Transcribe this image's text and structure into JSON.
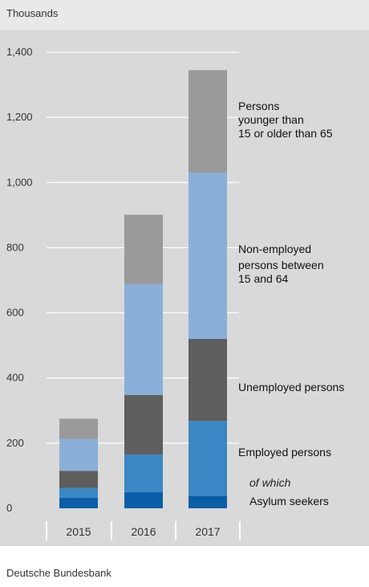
{
  "header": {
    "unit_label": "Thousands"
  },
  "footer": {
    "source": "Deutsche Bundesbank"
  },
  "chart_data": {
    "type": "bar",
    "stacked": true,
    "categories": [
      "2015",
      "2016",
      "2017"
    ],
    "ylim": [
      0,
      1400
    ],
    "yticks": [
      0,
      200,
      400,
      600,
      800,
      1000,
      1200,
      1400
    ],
    "ytick_labels": [
      "0",
      "200",
      "400",
      "600",
      "800",
      "1,000",
      "1,200",
      "1,400"
    ],
    "grid": true,
    "legend_placement": "right",
    "series": [
      {
        "name": "Asylum seekers",
        "prefix": "of which",
        "values": [
          32,
          50,
          38
        ],
        "color": "#0a5ea8"
      },
      {
        "name": "Employed persons",
        "values": [
          30,
          115,
          230
        ],
        "color": "#3a87c4"
      },
      {
        "name": "Unemployed persons",
        "values": [
          53,
          183,
          252
        ],
        "color": "#5e5e5e"
      },
      {
        "name": "Non-employed persons between 15 and 64",
        "label_lines": [
          "Non-employed",
          "persons between",
          "15 and 64"
        ],
        "values": [
          98,
          340,
          510
        ],
        "color": "#8aafd8"
      },
      {
        "name": "Persons younger than 15 or older than 65",
        "label_lines": [
          "Persons",
          "younger than",
          "15 or older than 65"
        ],
        "values": [
          62,
          213,
          315
        ],
        "color": "#9a9a9a"
      }
    ]
  }
}
